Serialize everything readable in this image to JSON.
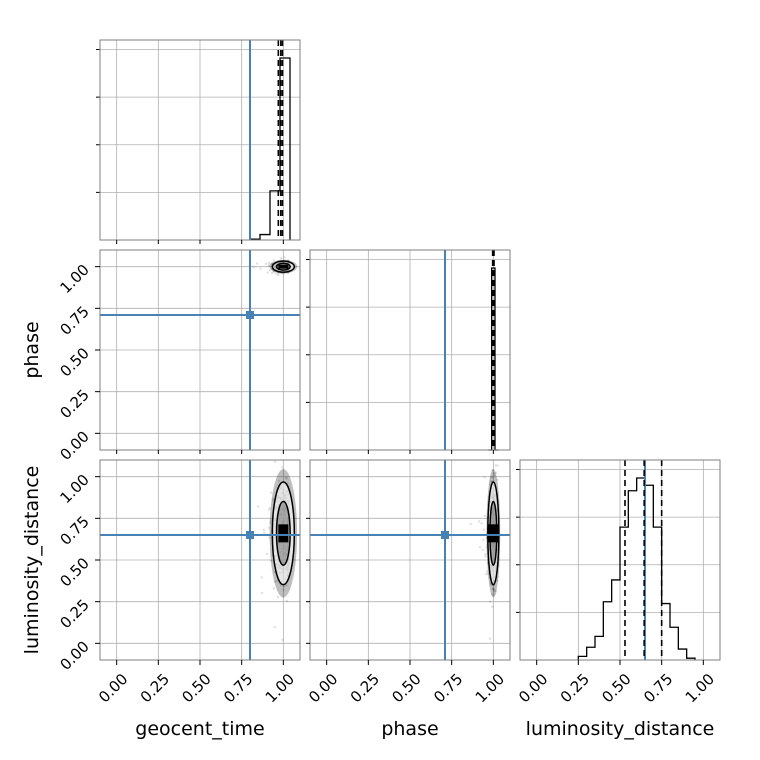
{
  "chart_data": {
    "type": "corner",
    "parameters": [
      "geocent_time",
      "phase",
      "luminosity_distance"
    ],
    "axis_range": [
      -0.1,
      1.1
    ],
    "ticks": [
      0.0,
      0.25,
      0.5,
      0.75,
      1.0
    ],
    "tick_labels": [
      "0.00",
      "0.25",
      "0.50",
      "0.75",
      "1.00"
    ],
    "truths": {
      "geocent_time": 0.8,
      "phase": 0.71,
      "luminosity_distance": 0.65
    },
    "colors": {
      "truth": "#4682b4",
      "histogram": "#000000",
      "density": "#000000",
      "grid": "#b0b0b0"
    },
    "grid": true,
    "diagonal": [
      {
        "parameter": "geocent_time",
        "bin_edges": [
          0.8,
          0.86,
          0.92,
          0.98,
          1.04
        ],
        "counts": [
          0.005,
          0.03,
          0.27,
          1.0
        ],
        "quantiles": [
          0.97,
          0.985,
          0.995
        ]
      },
      {
        "parameter": "phase",
        "bin_edges": [
          0.97,
          0.99,
          1.01,
          1.03
        ],
        "counts": [
          0.0,
          1.0,
          0.0
        ],
        "quantiles": [
          0.996,
          1.0,
          1.004
        ]
      },
      {
        "parameter": "luminosity_distance",
        "bin_edges": [
          0.25,
          0.3,
          0.35,
          0.4,
          0.45,
          0.5,
          0.55,
          0.6,
          0.65,
          0.7,
          0.75,
          0.8,
          0.85,
          0.9,
          0.95
        ],
        "counts": [
          0.02,
          0.07,
          0.13,
          0.32,
          0.44,
          0.73,
          0.93,
          1.0,
          0.96,
          0.73,
          0.31,
          0.18,
          0.06,
          0.01
        ],
        "quantiles": [
          0.53,
          0.645,
          0.75
        ]
      }
    ],
    "offdiagonal": [
      {
        "x": "geocent_time",
        "y": "phase",
        "center": [
          1.0,
          1.0
        ],
        "spread": [
          0.03,
          0.015
        ]
      },
      {
        "x": "geocent_time",
        "y": "luminosity_distance",
        "center": [
          1.0,
          0.66
        ],
        "spread": [
          0.03,
          0.14
        ]
      },
      {
        "x": "phase",
        "y": "luminosity_distance",
        "center": [
          1.0,
          0.66
        ],
        "spread": [
          0.015,
          0.14
        ]
      }
    ]
  }
}
